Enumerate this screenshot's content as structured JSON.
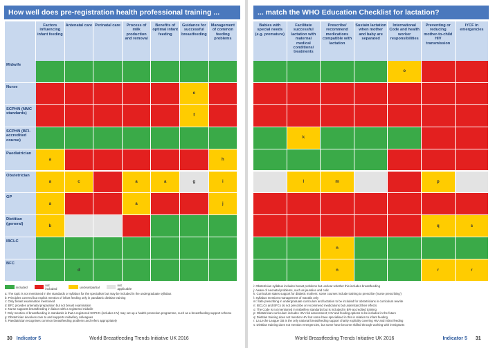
{
  "legend": [
    {
      "label": "included",
      "color": "#3aaa48"
    },
    {
      "label": "not included",
      "color": "#e3201f"
    },
    {
      "label": "unclear/partial",
      "color": "#ffcc00"
    },
    {
      "label": "not applicable",
      "color": "#e3e3e3"
    }
  ],
  "rows": [
    "Midwife",
    "Nurse",
    "SCPHN (NMC standards)",
    "SCPHN (BFI-accredited course)",
    "Paediatrician",
    "Obstetrician",
    "GP",
    "Dietitian (general)",
    "IBCLC",
    "BFC"
  ],
  "pages": [
    {
      "title": "How well does pre-registration health professional training ...",
      "columns": [
        "Factors influencing infant feeding",
        "Antenatal care",
        "Perinatal care",
        "Process of milk production and removal",
        "Benefits of optimal infant feeding",
        "Guidance for successful breastfeeding",
        "Management of common feeding problems"
      ],
      "cells": [
        [
          {
            "color": "#3aaa48"
          },
          {
            "color": "#3aaa48"
          },
          {
            "color": "#3aaa48"
          },
          {
            "color": "#3aaa48"
          },
          {
            "color": "#3aaa48"
          },
          {
            "color": "#3aaa48"
          },
          {
            "color": "#3aaa48"
          }
        ],
        [
          {
            "color": "#e3201f"
          },
          {
            "color": "#e3201f"
          },
          {
            "color": "#e3201f"
          },
          {
            "color": "#e3201f"
          },
          {
            "color": "#e3201f"
          },
          {
            "color": "#ffcc00",
            "note": "e"
          },
          {
            "color": "#e3201f"
          }
        ],
        [
          {
            "color": "#e3201f"
          },
          {
            "color": "#e3201f"
          },
          {
            "color": "#e3201f"
          },
          {
            "color": "#e3201f"
          },
          {
            "color": "#e3201f"
          },
          {
            "color": "#ffcc00",
            "note": "f"
          },
          {
            "color": "#e3201f"
          }
        ],
        [
          {
            "color": "#3aaa48"
          },
          {
            "color": "#3aaa48"
          },
          {
            "color": "#3aaa48"
          },
          {
            "color": "#3aaa48"
          },
          {
            "color": "#3aaa48"
          },
          {
            "color": "#3aaa48"
          },
          {
            "color": "#3aaa48"
          }
        ],
        [
          {
            "color": "#ffcc00",
            "note": "a"
          },
          {
            "color": "#e3201f"
          },
          {
            "color": "#e3201f"
          },
          {
            "color": "#e3201f"
          },
          {
            "color": "#e3201f"
          },
          {
            "color": "#e3201f"
          },
          {
            "color": "#ffcc00",
            "note": "h"
          }
        ],
        [
          {
            "color": "#ffcc00",
            "note": "a"
          },
          {
            "color": "#ffcc00",
            "note": "c"
          },
          {
            "color": "#e3201f"
          },
          {
            "color": "#ffcc00",
            "note": "a"
          },
          {
            "color": "#ffcc00",
            "note": "a"
          },
          {
            "color": "#e3e3e3",
            "note": "g"
          },
          {
            "color": "#ffcc00",
            "note": "i"
          }
        ],
        [
          {
            "color": "#ffcc00",
            "note": "a"
          },
          {
            "color": "#e3201f"
          },
          {
            "color": "#e3201f"
          },
          {
            "color": "#ffcc00",
            "note": "a"
          },
          {
            "color": "#e3201f"
          },
          {
            "color": "#e3201f"
          },
          {
            "color": "#ffcc00",
            "note": "j"
          }
        ],
        [
          {
            "color": "#ffcc00",
            "note": "b"
          },
          {
            "color": "#e3e3e3"
          },
          {
            "color": "#e3e3e3"
          },
          {
            "color": "#e3201f"
          },
          {
            "color": "#3aaa48"
          },
          {
            "color": "#3aaa48"
          },
          {
            "color": "#3aaa48"
          }
        ],
        [
          {
            "color": "#3aaa48"
          },
          {
            "color": "#3aaa48"
          },
          {
            "color": "#3aaa48"
          },
          {
            "color": "#3aaa48"
          },
          {
            "color": "#3aaa48"
          },
          {
            "color": "#3aaa48"
          },
          {
            "color": "#3aaa48"
          }
        ],
        [
          {
            "color": "#3aaa48"
          },
          {
            "color": "#3aaa48",
            "note": "d"
          },
          {
            "color": "#3aaa48"
          },
          {
            "color": "#3aaa48"
          },
          {
            "color": "#3aaa48"
          },
          {
            "color": "#3aaa48"
          },
          {
            "color": "#3aaa48"
          }
        ]
      ],
      "footnotes": [
        "a: The topic is not mentioned in the standards or syllabus for the specialism but may be included in the undergraduate syllabus",
        "b: Principles covered but explicit mention of infant feeding only in paediatric dietitian training",
        "c: Only breast examination mentioned",
        "d: BFC provides antenatal preparation but not breast examination",
        "e: Nurse supports breastfeeding in liaison with a registered midwife",
        "f: Only mention of breastfeeding in standards is that a registered SCPHN (includes HV) may set up a health-promotion programme, such as a breastfeeding support scheme",
        "g: Obstetrician devolves care to and supports midwifery colleagues",
        "h: Paediatrician recognises common breastfeeding problems and refers appropriately"
      ],
      "page_number": "30",
      "section": "Indicator 5",
      "publication": "World Breastfeeding Trends Initiative UK 2016"
    },
    {
      "title": "... match the WHO Education Checklist for lactation?",
      "columns": [
        "Babies with special needs (e.g. premature)",
        "Facilitate successful lactation with maternal medical conditions/ treatments",
        "Prescribe/ recommend medications compatible with lactation",
        "Sustain lactation when mother and baby are separated",
        "International Code and health worker responsibilities",
        "Preventing or reducing mother-to-child HIV transmission",
        "IYCF in emergencies"
      ],
      "cells": [
        [
          {
            "color": "#3aaa48"
          },
          {
            "color": "#3aaa48"
          },
          {
            "color": "#3aaa48"
          },
          {
            "color": "#3aaa48"
          },
          {
            "color": "#ffcc00",
            "note": "o"
          },
          {
            "color": "#e3201f"
          },
          {
            "color": "#e3201f"
          }
        ],
        [
          {
            "color": "#e3201f"
          },
          {
            "color": "#e3201f"
          },
          {
            "color": "#e3201f"
          },
          {
            "color": "#e3201f"
          },
          {
            "color": "#e3201f"
          },
          {
            "color": "#e3201f"
          },
          {
            "color": "#e3201f"
          }
        ],
        [
          {
            "color": "#e3201f"
          },
          {
            "color": "#e3201f"
          },
          {
            "color": "#e3201f"
          },
          {
            "color": "#e3201f"
          },
          {
            "color": "#e3201f"
          },
          {
            "color": "#e3201f"
          },
          {
            "color": "#e3201f"
          }
        ],
        [
          {
            "color": "#3aaa48"
          },
          {
            "color": "#ffcc00",
            "note": "k"
          },
          {
            "color": "#3aaa48"
          },
          {
            "color": "#3aaa48"
          },
          {
            "color": "#3aaa48"
          },
          {
            "color": "#e3201f"
          },
          {
            "color": "#e3201f"
          }
        ],
        [
          {
            "color": "#3aaa48"
          },
          {
            "color": "#3aaa48"
          },
          {
            "color": "#3aaa48"
          },
          {
            "color": "#3aaa48"
          },
          {
            "color": "#e3201f"
          },
          {
            "color": "#e3201f"
          },
          {
            "color": "#e3201f"
          }
        ],
        [
          {
            "color": "#e3e3e3"
          },
          {
            "color": "#ffcc00",
            "note": "l"
          },
          {
            "color": "#ffcc00",
            "note": "m"
          },
          {
            "color": "#e3e3e3"
          },
          {
            "color": "#e3201f"
          },
          {
            "color": "#ffcc00",
            "note": "p"
          },
          {
            "color": "#e3e3e3"
          }
        ],
        [
          {
            "color": "#e3201f"
          },
          {
            "color": "#e3201f"
          },
          {
            "color": "#e3201f"
          },
          {
            "color": "#e3201f"
          },
          {
            "color": "#e3201f"
          },
          {
            "color": "#e3201f"
          },
          {
            "color": "#e3201f"
          }
        ],
        [
          {
            "color": "#e3201f"
          },
          {
            "color": "#e3201f"
          },
          {
            "color": "#e3201f"
          },
          {
            "color": "#e3201f"
          },
          {
            "color": "#e3201f"
          },
          {
            "color": "#ffcc00",
            "note": "q"
          },
          {
            "color": "#ffcc00",
            "note": "s"
          }
        ],
        [
          {
            "color": "#3aaa48"
          },
          {
            "color": "#3aaa48"
          },
          {
            "color": "#ffcc00",
            "note": "n"
          },
          {
            "color": "#3aaa48"
          },
          {
            "color": "#3aaa48"
          },
          {
            "color": "#3aaa48"
          },
          {
            "color": "#3aaa48"
          }
        ],
        [
          {
            "color": "#3aaa48"
          },
          {
            "color": "#3aaa48"
          },
          {
            "color": "#ffcc00",
            "note": "n"
          },
          {
            "color": "#3aaa48"
          },
          {
            "color": "#3aaa48"
          },
          {
            "color": "#ffcc00",
            "note": "r"
          },
          {
            "color": "#ffcc00",
            "note": "r"
          }
        ]
      ],
      "footnotes": [
        "i: Obstetrician syllabus includes breast problems but unclear whether this includes breastfeeding",
        "j: Aware of neonatal problems, such as jaundice and colic",
        "k: Curriculum states support for diabetic mothers: some courses include training to prescribe ('nurse prescribing')",
        "l: Syllabus mentions management of mastitis only",
        "m: Safe prescribing in undergraduate curriculum and lactation to be included for obstetricians in curriculum rewrite",
        "n: IBCLCs and BFCs do not prescribe or recommend medications but understand their effects",
        "o: The Code is not mentioned in midwifery standards but is included in BFI-accredited training",
        "p: Obstetrician curriculum includes HIV risk assessment; HIV and feeding options to be included in the future",
        "q: Dietitian training does not mention HIV but some have specialised in this in relation to infant feeding",
        "r: La Leche League GB is the only national breastfeeding support charity explicitly covering HIV and infant feeding",
        "s: Dietitian training does not mention emergencies, but some have become skilled through working with immigrants"
      ],
      "page_number": "31",
      "section": "Indicator 5",
      "publication": "World Breastfeeding Trends Initiative UK 2016"
    }
  ]
}
